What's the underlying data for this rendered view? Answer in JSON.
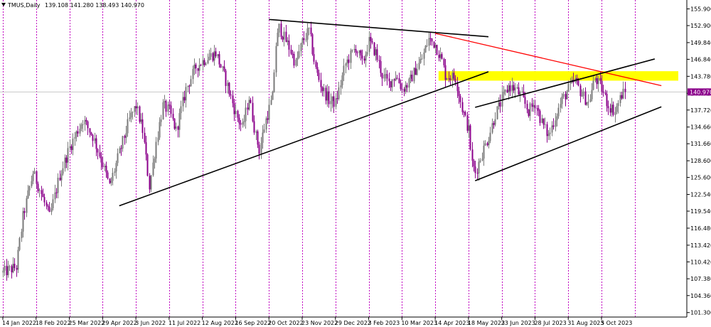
{
  "chart_data": {
    "type": "candlestick",
    "symbol_header": "TMUS,Daily",
    "ohlc_header": "139.108 141.280 138.493 140.970",
    "last_price": 140.97,
    "last_price_label": "140.970",
    "ylim": [
      100.5,
      157.5
    ],
    "y_ticks": [
      101.3,
      104.36,
      107.38,
      110.42,
      113.42,
      116.48,
      119.54,
      122.54,
      125.6,
      128.6,
      131.66,
      134.66,
      137.72,
      140.72,
      143.78,
      146.84,
      149.84,
      152.9,
      155.9
    ],
    "y_tick_labels": [
      "101.300",
      "104.360",
      "107.380",
      "110.420",
      "113.420",
      "116.480",
      "119.540",
      "122.540",
      "125.600",
      "128.600",
      "131.660",
      "134.660",
      "137.720",
      "140.720",
      "143.780",
      "146.840",
      "149.840",
      "152.900",
      "155.900"
    ],
    "x_tick_labels": [
      "14 Jan 2022",
      "18 Feb 2022",
      "25 Mar 2022",
      "29 Apr 2022",
      "3 Jun 2022",
      "11 Jul 2022",
      "12 Aug 2022",
      "16 Sep 2022",
      "20 Oct 2022",
      "23 Nov 2022",
      "29 Dec 2022",
      "3 Feb 2023",
      "10 Mar 2023",
      "14 Apr 2023",
      "18 May 2023",
      "23 Jun 2023",
      "28 Jul 2023",
      "31 Aug 2023",
      "5 Oct 2023"
    ],
    "x_tick_index": [
      0,
      10,
      20,
      30,
      40,
      50,
      60,
      70,
      80,
      90,
      100,
      110,
      120,
      130,
      140,
      150,
      160,
      170,
      180
    ],
    "bar_count": 190,
    "price_path": [
      [
        0,
        108.5
      ],
      [
        4,
        109.5
      ],
      [
        6,
        118.5
      ],
      [
        9,
        126.5
      ],
      [
        11,
        123.5
      ],
      [
        14,
        118.5
      ],
      [
        17,
        126.0
      ],
      [
        20,
        131.0
      ],
      [
        24,
        136.0
      ],
      [
        27,
        133.0
      ],
      [
        30,
        128.0
      ],
      [
        32,
        124.0
      ],
      [
        35,
        130.0
      ],
      [
        38,
        136.0
      ],
      [
        40,
        138.5
      ],
      [
        42,
        134.0
      ],
      [
        44,
        124.0
      ],
      [
        46,
        132.0
      ],
      [
        48,
        138.5
      ],
      [
        50,
        137.5
      ],
      [
        52,
        134.0
      ],
      [
        55,
        141.5
      ],
      [
        58,
        145.5
      ],
      [
        61,
        147.0
      ],
      [
        64,
        148.0
      ],
      [
        67,
        143.0
      ],
      [
        70,
        137.0
      ],
      [
        72,
        134.5
      ],
      [
        74,
        140.0
      ],
      [
        76,
        133.0
      ],
      [
        77,
        130.5
      ],
      [
        79,
        136.0
      ],
      [
        81,
        140.0
      ],
      [
        82,
        149.5
      ],
      [
        83,
        152.5
      ],
      [
        86,
        149.0
      ],
      [
        88,
        146.0
      ],
      [
        90,
        150.0
      ],
      [
        92,
        152.0
      ],
      [
        94,
        145.0
      ],
      [
        96,
        141.5
      ],
      [
        98,
        139.5
      ],
      [
        100,
        139.0
      ],
      [
        103,
        146.0
      ],
      [
        106,
        149.0
      ],
      [
        108,
        146.0
      ],
      [
        110,
        150.0
      ],
      [
        112,
        148.0
      ],
      [
        114,
        144.0
      ],
      [
        116,
        142.5
      ],
      [
        118,
        144.0
      ],
      [
        120,
        141.5
      ],
      [
        122,
        142.5
      ],
      [
        124,
        145.0
      ],
      [
        126,
        147.0
      ],
      [
        128,
        150.5
      ],
      [
        130,
        149.5
      ],
      [
        132,
        146.5
      ],
      [
        133,
        144.0
      ],
      [
        136,
        143.5
      ],
      [
        138,
        138.0
      ],
      [
        140,
        134.0
      ],
      [
        141,
        128.0
      ],
      [
        142,
        126.5
      ],
      [
        144,
        130.0
      ],
      [
        146,
        133.0
      ],
      [
        148,
        137.0
      ],
      [
        150,
        139.5
      ],
      [
        152,
        142.0
      ],
      [
        154,
        141.5
      ],
      [
        156,
        140.0
      ],
      [
        158,
        137.5
      ],
      [
        160,
        139.0
      ],
      [
        162,
        135.5
      ],
      [
        164,
        133.0
      ],
      [
        166,
        136.5
      ],
      [
        168,
        139.5
      ],
      [
        170,
        141.5
      ],
      [
        172,
        143.0
      ],
      [
        174,
        140.5
      ],
      [
        176,
        139.0
      ],
      [
        178,
        143.5
      ],
      [
        180,
        141.5
      ],
      [
        182,
        138.5
      ],
      [
        184,
        137.5
      ],
      [
        185,
        139.0
      ],
      [
        186,
        140.5
      ],
      [
        187,
        140.97
      ]
    ],
    "colors": {
      "bull": "#7a7a7a",
      "bear": "#8b008b",
      "grid_v": "#c000c0",
      "price_line": "#c8c8c8",
      "trend_black": "#000000",
      "trend_red": "#ff0000",
      "zone": "#ffff00",
      "axis": "#000000",
      "label_bg": "#8b008b"
    },
    "annotations": {
      "zone": {
        "x_from_index": 131,
        "x_to": "right-edge",
        "y_low": 143.0,
        "y_high": 144.7
      },
      "trendlines": [
        {
          "color": "black",
          "from": [
            35,
            120.5
          ],
          "to": [
            146,
            144.6
          ]
        },
        {
          "color": "black",
          "from": [
            80,
            154.0
          ],
          "to": [
            146,
            150.9
          ]
        },
        {
          "color": "red",
          "from": [
            130,
            151.5
          ],
          "to": [
            198,
            142.1
          ]
        },
        {
          "color": "black",
          "from": [
            142,
            125.0
          ],
          "to": [
            198,
            138.3
          ]
        },
        {
          "color": "black",
          "from": [
            142,
            138.2
          ],
          "to": [
            196,
            146.9
          ]
        }
      ]
    }
  }
}
